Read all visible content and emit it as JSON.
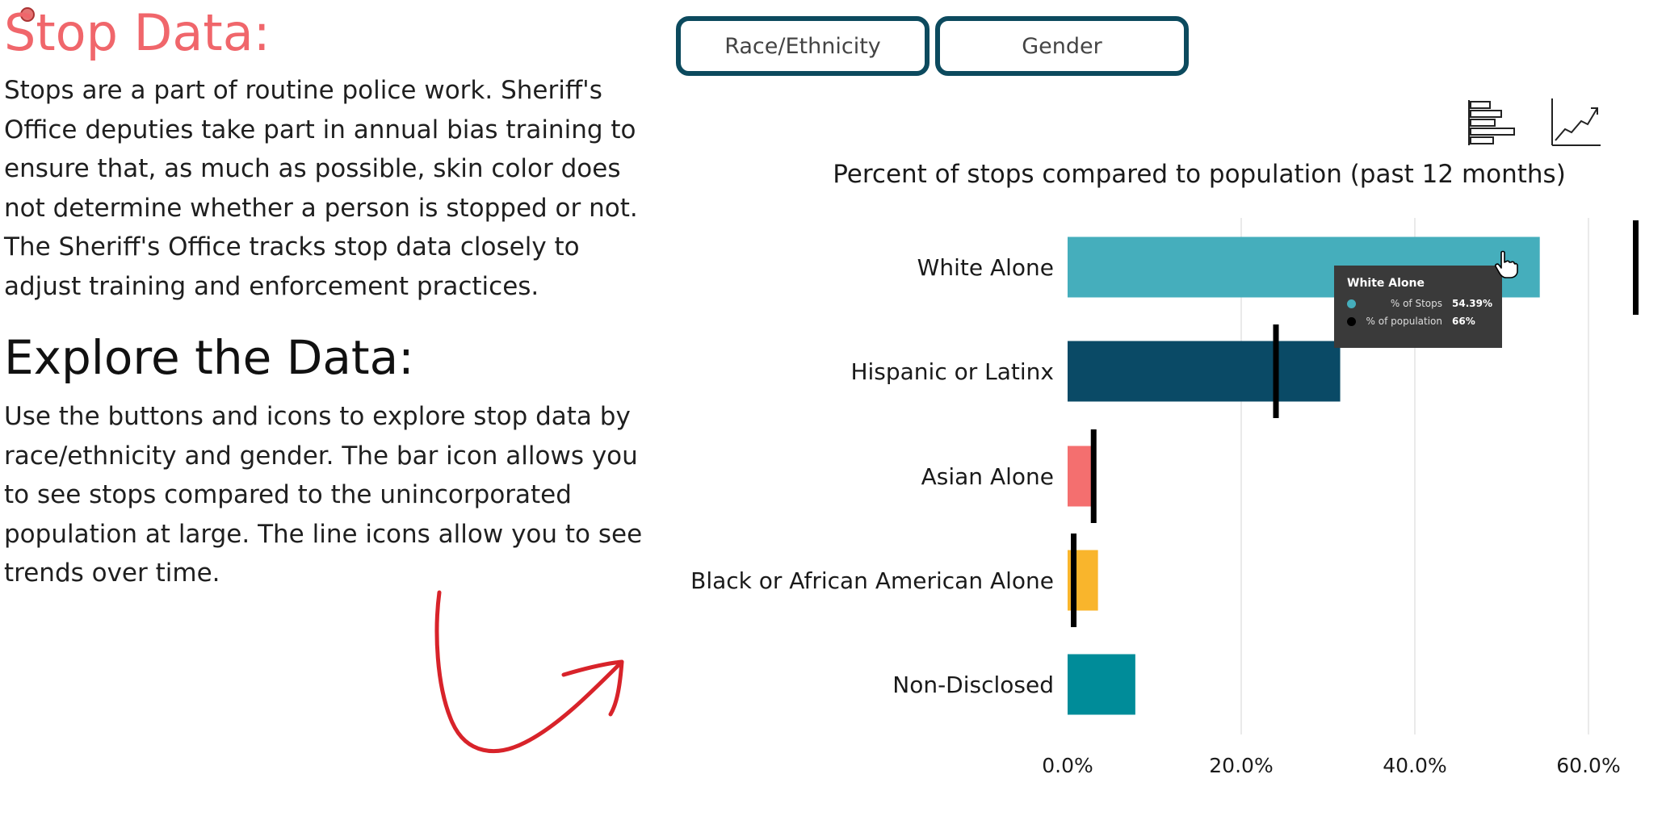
{
  "left_panel": {
    "stop_title": "Stop Data:",
    "intro_lines": [
      "Stops are a part of routine police work. Sheriff's",
      "Office deputies take part in annual bias training to",
      "ensure that, as much as possible, skin color does",
      "not determine whether a person is stopped or not.",
      "The Sheriff's Office tracks stop data closely to",
      "adjust training and enforcement practices."
    ],
    "explore_title": "Explore the Data:",
    "explore_lines": [
      "Use the buttons and icons to explore stop data by",
      "race/ethnicity and gender. The bar icon allows you",
      "to see stops compared to the unincorporated",
      "population at large. The line icons allow you to see",
      "trends over time."
    ]
  },
  "buttons": {
    "race_label": "Race/Ethnicity",
    "gender_label": "Gender"
  },
  "icons": {
    "bar": "bar-chart-icon",
    "line": "line-chart-icon"
  },
  "chart_data": {
    "type": "bar",
    "orientation": "horizontal",
    "title": "Percent of stops compared to population (past 12 months)",
    "categories": [
      "White Alone",
      "Hispanic or Latinx",
      "Asian Alone",
      "Black or African American Alone",
      "Non-Disclosed"
    ],
    "series": [
      {
        "name": "% of Stops",
        "values": [
          54.39,
          31.4,
          2.9,
          3.5,
          7.8
        ]
      },
      {
        "name": "% of population",
        "values": [
          66,
          24,
          3,
          0.7,
          null
        ]
      }
    ],
    "bar_colors": [
      "#45aebc",
      "#0a4a66",
      "#f46f6f",
      "#f9b52c",
      "#008c99"
    ],
    "xlim": [
      0,
      66
    ],
    "ticks": [
      "0.0%",
      "20.0%",
      "40.0%",
      "60.0%"
    ],
    "tick_values": [
      0,
      20,
      40,
      60
    ],
    "grid": true
  },
  "tooltip": {
    "title": "White Alone",
    "rows": [
      {
        "label": "% of Stops",
        "value": "54.39%",
        "color": "#45aebc"
      },
      {
        "label": "% of population",
        "value": "66%",
        "color": "#000000"
      }
    ]
  }
}
